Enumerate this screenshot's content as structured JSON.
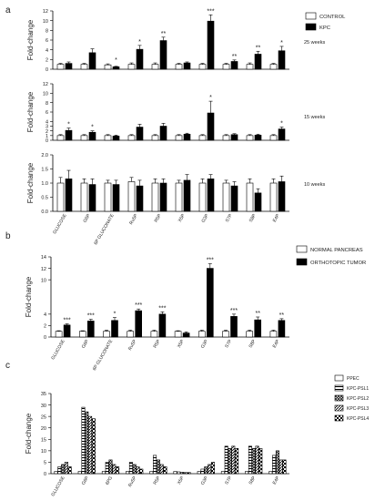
{
  "figure": {
    "panel_labels": [
      "a",
      "b",
      "c"
    ]
  },
  "chart_data": [
    {
      "id": "a25",
      "type": "bar",
      "panel": "a",
      "ylabel": "Fold-change",
      "side_label": "25 weeks",
      "ylim": [
        0,
        12
      ],
      "yticks": [
        0,
        2,
        4,
        6,
        8,
        10,
        12
      ],
      "categories": [
        "GLUCOSE",
        "G6P",
        "6P GLUCONATE",
        "Ru5P",
        "R5P",
        "X5P",
        "G3P",
        "S7P",
        "S8P",
        "E4P"
      ],
      "legend": {
        "position": "right",
        "entries": [
          "CONTROL",
          "KPC"
        ]
      },
      "series": [
        {
          "name": "CONTROL",
          "values": [
            1.0,
            1.0,
            0.9,
            1.0,
            1.0,
            1.0,
            1.0,
            1.0,
            1.0,
            1.0
          ],
          "errors": [
            0.2,
            0.2,
            0.2,
            0.3,
            0.3,
            0.2,
            0.2,
            0.2,
            0.3,
            0.2
          ]
        },
        {
          "name": "KPC",
          "values": [
            1.2,
            3.4,
            0.5,
            4.1,
            5.9,
            1.3,
            9.9,
            1.6,
            3.1,
            3.8
          ],
          "errors": [
            0.3,
            0.8,
            0.1,
            0.8,
            0.7,
            0.2,
            1.3,
            0.3,
            0.6,
            0.9
          ]
        }
      ],
      "significance": [
        "",
        "",
        "*",
        "*",
        "**",
        "",
        "***",
        "**",
        "**",
        "*"
      ]
    },
    {
      "id": "a15",
      "type": "bar",
      "panel": "a",
      "ylabel": "Fold-change",
      "side_label": "15 weeks",
      "ylim": [
        0,
        12
      ],
      "yticks": [
        0,
        1,
        2,
        3,
        4,
        6,
        8,
        10,
        12
      ],
      "categories": [
        "GLUCOSE",
        "G6P",
        "6P GLUCONATE",
        "Ru5P",
        "R5P",
        "X5P",
        "G3P",
        "S7P",
        "S8P",
        "E4P"
      ],
      "series": [
        {
          "name": "CONTROL",
          "values": [
            1.0,
            1.0,
            1.0,
            1.0,
            1.0,
            1.0,
            1.0,
            1.0,
            1.0,
            1.0
          ],
          "errors": [
            0.2,
            0.2,
            0.2,
            0.2,
            0.2,
            0.2,
            0.2,
            0.2,
            0.2,
            0.2
          ]
        },
        {
          "name": "KPC",
          "values": [
            2.1,
            1.7,
            0.9,
            2.8,
            3.0,
            1.3,
            5.8,
            1.2,
            1.1,
            2.4
          ],
          "errors": [
            0.5,
            0.3,
            0.2,
            0.6,
            0.6,
            0.2,
            2.5,
            0.2,
            0.2,
            0.4
          ]
        }
      ],
      "significance": [
        "*",
        "*",
        "",
        "",
        "",
        "",
        "*",
        "",
        "",
        "*"
      ]
    },
    {
      "id": "a10",
      "type": "bar",
      "panel": "a",
      "ylabel": "Fold-change",
      "side_label": "10 weeks",
      "ylim": [
        0,
        2.0
      ],
      "yticks": [
        0.0,
        0.5,
        1.0,
        1.5,
        2.0
      ],
      "categories": [
        "GLUCOSE",
        "G6P",
        "6P GLUCONATE",
        "Ru5P",
        "R5P",
        "X5P",
        "G3P",
        "S7P",
        "S8P",
        "E4P"
      ],
      "series": [
        {
          "name": "CONTROL",
          "values": [
            1.0,
            1.0,
            1.0,
            1.05,
            1.0,
            1.0,
            1.0,
            1.0,
            1.0,
            1.0
          ],
          "errors": [
            0.2,
            0.15,
            0.1,
            0.15,
            0.15,
            0.1,
            0.15,
            0.1,
            0.15,
            0.15
          ]
        },
        {
          "name": "KPC",
          "values": [
            1.15,
            0.95,
            0.95,
            0.9,
            1.0,
            1.1,
            1.15,
            0.9,
            0.65,
            1.05
          ],
          "errors": [
            0.3,
            0.2,
            0.15,
            0.2,
            0.15,
            0.2,
            0.15,
            0.15,
            0.15,
            0.2
          ]
        }
      ],
      "significance": [
        "",
        "",
        "",
        "",
        "",
        "",
        "",
        "",
        "",
        ""
      ]
    },
    {
      "id": "b",
      "type": "bar",
      "panel": "b",
      "ylabel": "Fold-change",
      "ylim": [
        0,
        14
      ],
      "yticks": [
        0,
        2,
        4,
        10,
        12,
        14
      ],
      "categories": [
        "GLUCOSE",
        "G6P",
        "6P GLUCONATE",
        "Ru5P",
        "R5P",
        "X5P",
        "G3P",
        "S7P",
        "S8P",
        "E4P"
      ],
      "legend": {
        "position": "right",
        "entries": [
          "NORMAL PANCREAS",
          "ORTHOTOPIC TUMOR"
        ]
      },
      "series": [
        {
          "name": "NORMAL PANCREAS",
          "values": [
            1.0,
            1.0,
            1.0,
            1.0,
            1.0,
            1.0,
            1.0,
            1.0,
            1.0,
            1.0
          ],
          "errors": [
            0.1,
            0.1,
            0.2,
            0.2,
            0.2,
            0.1,
            0.2,
            0.2,
            0.2,
            0.2
          ]
        },
        {
          "name": "ORTHOTOPIC TUMOR",
          "values": [
            2.1,
            2.8,
            2.9,
            4.6,
            4.0,
            0.7,
            12.0,
            3.6,
            3.0,
            2.9
          ],
          "errors": [
            0.2,
            0.3,
            0.5,
            0.3,
            0.4,
            0.2,
            0.8,
            0.4,
            0.5,
            0.3
          ]
        }
      ],
      "significance": [
        "***",
        "***",
        "*",
        "***",
        "***",
        "",
        "***",
        "***",
        "**",
        "**"
      ]
    },
    {
      "id": "c",
      "type": "bar",
      "panel": "c",
      "ylabel": "Fold-change",
      "ylim": [
        0,
        35
      ],
      "yticks": [
        0,
        5,
        10,
        15,
        20,
        25,
        30,
        35
      ],
      "categories": [
        "GLUCOSE",
        "G6P",
        "6PG",
        "Ru5P",
        "R5P",
        "X5P",
        "G3P",
        "S7P",
        "S8P",
        "E4P"
      ],
      "legend": {
        "position": "right",
        "entries": [
          "PPEC",
          "KPC-PSL1",
          "KPC-PSL2",
          "KPC-PSL3",
          "KPC-PSL4"
        ]
      },
      "series": [
        {
          "name": "PPEC",
          "values": [
            1,
            1,
            1,
            1,
            1,
            1,
            1,
            1,
            1,
            1
          ]
        },
        {
          "name": "KPC-PSL1",
          "values": [
            3,
            29,
            5,
            5,
            8,
            0.8,
            2,
            12,
            12,
            8
          ]
        },
        {
          "name": "KPC-PSL2",
          "values": [
            4,
            27,
            6,
            4,
            6,
            0.6,
            3,
            11,
            11,
            10
          ]
        },
        {
          "name": "KPC-PSL3",
          "values": [
            5,
            25,
            4,
            3,
            4,
            0.5,
            4,
            12,
            12,
            6
          ]
        },
        {
          "name": "KPC-PSL4",
          "values": [
            3,
            24,
            3,
            2,
            3,
            0.5,
            5,
            11,
            11,
            6
          ]
        }
      ]
    }
  ]
}
